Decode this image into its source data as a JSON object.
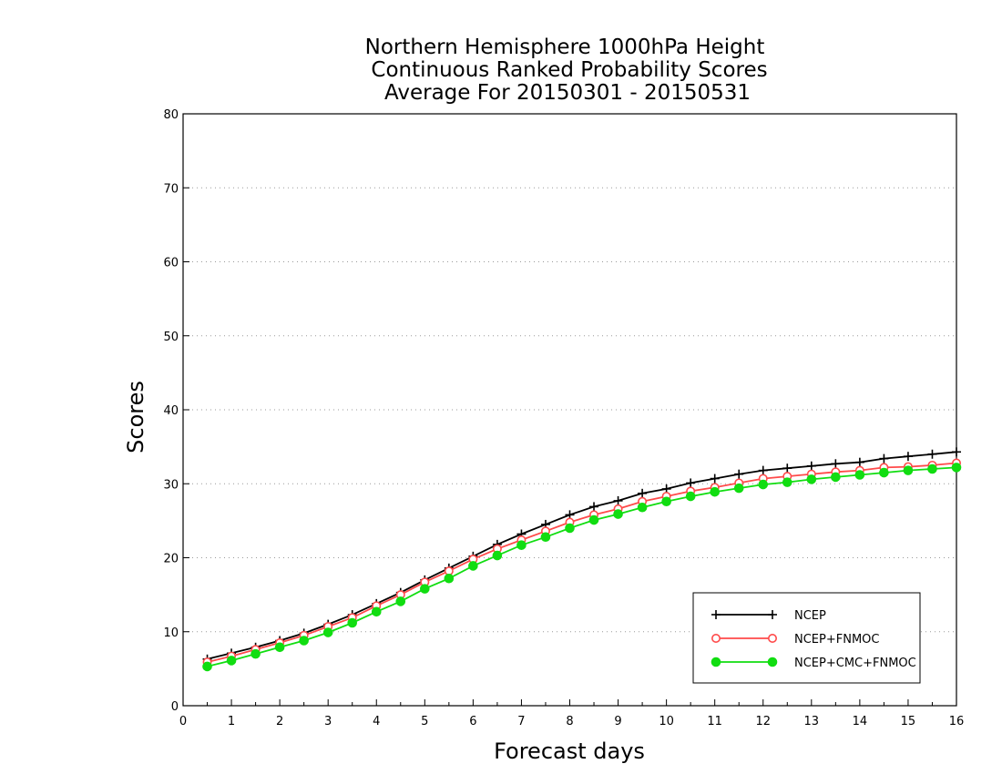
{
  "chart_data": {
    "type": "line",
    "title": [
      "Northern Hemisphere 1000hPa Height",
      "Continuous Ranked Probability Scores",
      "Average For 20150301 - 20150531"
    ],
    "xlabel": "Forecast days",
    "ylabel": "Scores",
    "xlim": [
      0,
      16
    ],
    "ylim": [
      0,
      80
    ],
    "xticks": [
      0,
      1,
      2,
      3,
      4,
      5,
      6,
      7,
      8,
      9,
      10,
      11,
      12,
      13,
      14,
      15,
      16
    ],
    "yticks": [
      0,
      10,
      20,
      30,
      40,
      50,
      60,
      70,
      80
    ],
    "grid": "horizontal-dotted",
    "legend_position": "bottom-right",
    "x": [
      0.5,
      1,
      1.5,
      2,
      2.5,
      3,
      3.5,
      4,
      4.5,
      5,
      5.5,
      6,
      6.5,
      7,
      7.5,
      8,
      8.5,
      9,
      9.5,
      10,
      10.5,
      11,
      11.5,
      12,
      12.5,
      13,
      13.5,
      14,
      14.5,
      15,
      15.5,
      16
    ],
    "series": [
      {
        "name": "NCEP",
        "color": "#000000",
        "marker": "plus",
        "values": [
          6.3,
          7.1,
          7.9,
          8.8,
          9.8,
          11.0,
          12.3,
          13.8,
          15.3,
          17.0,
          18.6,
          20.2,
          21.8,
          23.2,
          24.5,
          25.8,
          26.9,
          27.7,
          28.7,
          29.3,
          30.1,
          30.7,
          31.3,
          31.8,
          32.1,
          32.4,
          32.7,
          32.9,
          33.4,
          33.7,
          34.0,
          34.3
        ]
      },
      {
        "name": "NCEP+FNMOC",
        "color": "#ff4a4a",
        "marker": "open-circle",
        "values": [
          5.9,
          6.7,
          7.6,
          8.5,
          9.5,
          10.7,
          11.9,
          13.5,
          15.0,
          16.7,
          18.2,
          19.8,
          21.2,
          22.4,
          23.6,
          24.8,
          25.8,
          26.6,
          27.6,
          28.3,
          29.0,
          29.5,
          30.1,
          30.7,
          31.0,
          31.3,
          31.6,
          31.8,
          32.2,
          32.3,
          32.5,
          32.8
        ]
      },
      {
        "name": "NCEP+CMC+FNMOC",
        "color": "#11dd11",
        "marker": "filled-circle",
        "values": [
          5.3,
          6.1,
          7.0,
          7.9,
          8.8,
          9.9,
          11.2,
          12.7,
          14.1,
          15.8,
          17.2,
          18.9,
          20.3,
          21.7,
          22.8,
          24.0,
          25.1,
          25.9,
          26.8,
          27.6,
          28.3,
          28.9,
          29.4,
          29.9,
          30.2,
          30.6,
          30.9,
          31.2,
          31.5,
          31.8,
          32.0,
          32.2
        ]
      }
    ]
  }
}
